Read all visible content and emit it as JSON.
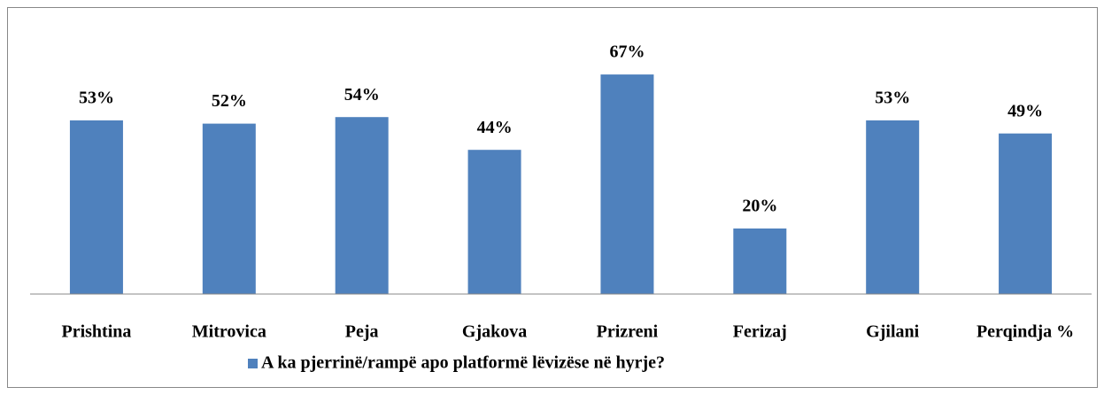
{
  "chart_data": {
    "type": "bar",
    "categories": [
      "Prishtina",
      "Mitrovica",
      "Peja",
      "Gjakova",
      "Prizreni",
      "Ferizaj",
      "Gjilani",
      "Perqindja %"
    ],
    "series": [
      {
        "name": "A ka pjerrinë/rampë apo platformë lëvizëse në hyrje?",
        "color": "#4f81bd",
        "values": [
          53,
          52,
          54,
          44,
          67,
          20,
          53,
          49
        ],
        "value_labels": [
          "53%",
          "52%",
          "54%",
          "44%",
          "67%",
          "20%",
          "53%",
          "49%"
        ]
      }
    ],
    "ylim": [
      0,
      80
    ],
    "grid": false,
    "legend": "bottom"
  }
}
